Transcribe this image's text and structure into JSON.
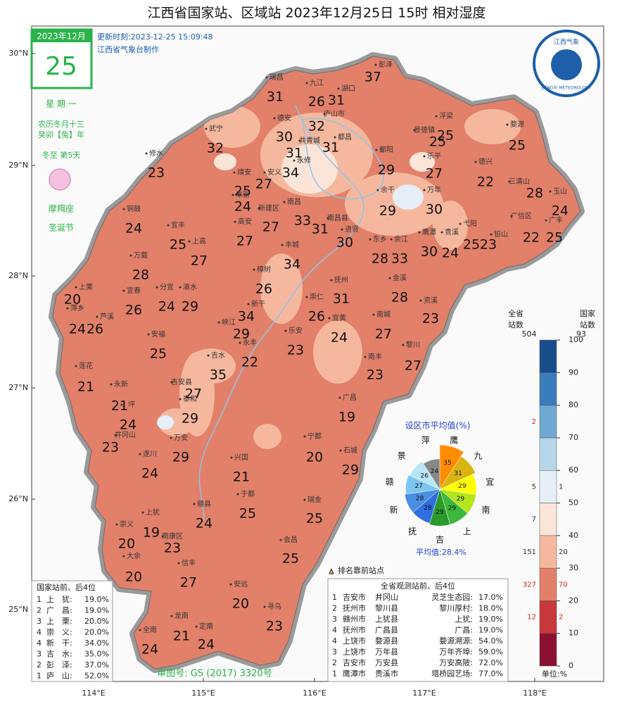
{
  "title": "江西省国家站、区域站    2023年12月25日  15时    相对湿度",
  "calendar": {
    "month": "2023年12月",
    "day": "25",
    "weekday": "星 期 一",
    "lunar_date": "农历冬月十三",
    "lunar_year": "癸卯【兔】年",
    "solar_term": "冬至  第5天",
    "zodiac": "摩羯座",
    "festival": "圣诞节"
  },
  "update_time": "更新时刻:2023-12-25 15:09:48",
  "producer": "江西省气象台制作",
  "logo": {
    "name": "江西气象",
    "english": "JIANGXI METEOROLOGY"
  },
  "lat_labels": [
    "30°N",
    "29°N",
    "28°N",
    "27°N",
    "26°N",
    "25°N"
  ],
  "lon_labels": [
    "114°E",
    "115°E",
    "116°E",
    "117°E",
    "118°E"
  ],
  "stations": [
    {
      "name": "彭泽",
      "value": 37
    },
    {
      "name": "瑞昌",
      "value": 31
    },
    {
      "name": "九江",
      "value": 26
    },
    {
      "name": "湖口",
      "value": 31
    },
    {
      "name": "庐山市",
      "value": 32
    },
    {
      "name": "德安",
      "value": 30
    },
    {
      "name": "共青城",
      "value": 31
    },
    {
      "name": "都昌",
      "value": 31
    },
    {
      "name": "武宁",
      "value": 32
    },
    {
      "name": "修水",
      "value": 23
    },
    {
      "name": "永修",
      "value": 34
    },
    {
      "name": "鄱阳",
      "value": 29
    },
    {
      "name": "浮梁",
      "value": 25
    },
    {
      "name": "景德镇",
      "value": 25
    },
    {
      "name": "乐平",
      "value": 27
    },
    {
      "name": "婺源",
      "value": 25
    },
    {
      "name": "德兴",
      "value": 22
    },
    {
      "name": "三清山",
      "value": 28
    },
    {
      "name": "玉山",
      "value": 24
    },
    {
      "name": "靖安",
      "value": 25
    },
    {
      "name": "安义",
      "value": 27
    },
    {
      "name": "奉新",
      "value": 24
    },
    {
      "name": "南昌",
      "value": 33
    },
    {
      "name": "新建区",
      "value": 27
    },
    {
      "name": "南昌县",
      "value": 31
    },
    {
      "name": "进贤",
      "value": 30
    },
    {
      "name": "余干",
      "value": 29
    },
    {
      "name": "万年",
      "value": 30
    },
    {
      "name": "鹰潭",
      "value": 30
    },
    {
      "name": "贵溪",
      "value": 24
    },
    {
      "name": "弋阳",
      "value": 25
    },
    {
      "name": "铅山",
      "value": 23
    },
    {
      "name": "广信区",
      "value": 22
    },
    {
      "name": "广丰",
      "value": 25
    },
    {
      "name": "东乡",
      "value": 28
    },
    {
      "name": "余江",
      "value": 33
    },
    {
      "name": "金溪",
      "value": 28
    },
    {
      "name": "资溪",
      "value": 23
    },
    {
      "name": "南城",
      "value": 27
    },
    {
      "name": "黎川",
      "value": 27
    },
    {
      "name": "南丰",
      "value": 23
    },
    {
      "name": "抚州",
      "value": 31
    },
    {
      "name": "崇仁",
      "value": 26
    },
    {
      "name": "宜黄",
      "value": 24
    },
    {
      "name": "乐安",
      "value": 23
    },
    {
      "name": "丰城",
      "value": 34
    },
    {
      "name": "高安",
      "value": 27
    },
    {
      "name": "上高",
      "value": 27
    },
    {
      "name": "宜丰",
      "value": 25
    },
    {
      "name": "铜鼓",
      "value": 24
    },
    {
      "name": "万载",
      "value": 28
    },
    {
      "name": "樟树",
      "value": 26
    },
    {
      "name": "新干",
      "value": 34
    },
    {
      "name": "峡江",
      "value": 29
    },
    {
      "name": "永丰",
      "value": 22
    },
    {
      "name": "分宜",
      "value": 24
    },
    {
      "name": "渝水",
      "value": 29
    },
    {
      "name": "宜春",
      "value": 26
    },
    {
      "name": "萍乡",
      "value": 24
    },
    {
      "name": "芦溪",
      "value": 26
    },
    {
      "name": "上栗",
      "value": 20
    },
    {
      "name": "莲花",
      "value": 21
    },
    {
      "name": "安福",
      "value": 25
    },
    {
      "name": "吉水",
      "value": 35
    },
    {
      "name": "吉安县",
      "value": 27
    },
    {
      "name": "泰和",
      "value": 29
    },
    {
      "name": "永新",
      "value": 21
    },
    {
      "name": "坪",
      "value": 24
    },
    {
      "name": "井冈山",
      "value": 23
    },
    {
      "name": "万安",
      "value": 29
    },
    {
      "name": "遂川",
      "value": 24
    },
    {
      "name": "兴国",
      "value": 21
    },
    {
      "name": "宁都",
      "value": 20
    },
    {
      "name": "广昌",
      "value": 19
    },
    {
      "name": "石城",
      "value": 29
    },
    {
      "name": "于都",
      "value": 25
    },
    {
      "name": "瑞金",
      "value": 25
    },
    {
      "name": "赣县",
      "value": 24
    },
    {
      "name": "上犹",
      "value": 19
    },
    {
      "name": "崇义",
      "value": 20
    },
    {
      "name": "南康区",
      "value": 23
    },
    {
      "name": "大余",
      "value": 20
    },
    {
      "name": "信丰",
      "value": 27
    },
    {
      "name": "会昌",
      "value": 25
    },
    {
      "name": "安远",
      "value": 20
    },
    {
      "name": "寻乌",
      "value": 23
    },
    {
      "name": "龙南",
      "value": 21
    },
    {
      "name": "全南",
      "value": 24
    },
    {
      "name": "定南",
      "value": 24
    }
  ],
  "colorbar": {
    "province_header": [
      "全省",
      "站数"
    ],
    "province_total": "504",
    "national_header": [
      "国家",
      "站数"
    ],
    "national_total": "93",
    "ticks": [
      0,
      10,
      20,
      30,
      40,
      50,
      60,
      70,
      80,
      90,
      100
    ],
    "unit": "单位:%",
    "bands": [
      {
        "color": "#8c1030",
        "province": null,
        "national": null,
        "count_color": "#333333"
      },
      {
        "color": "#c8373a",
        "province": "12",
        "national": "2",
        "count_color": "#cc2222"
      },
      {
        "color": "#e2806a",
        "province": "327",
        "national": "70",
        "count_color": "#cc2222"
      },
      {
        "color": "#f5b89e",
        "province": "151",
        "national": "20",
        "count_color": "#333333"
      },
      {
        "color": "#fbe5d9",
        "province": "7",
        "national": null,
        "count_color": "#333333"
      },
      {
        "color": "#e6eef7",
        "province": "5",
        "national": "1",
        "count_color": "#333333"
      },
      {
        "color": "#b6d6ea",
        "province": null,
        "national": null,
        "count_color": "#333333"
      },
      {
        "color": "#6fa9d3",
        "province": "2",
        "national": null,
        "count_color": "#cc2222"
      },
      {
        "color": "#3a7dbd",
        "province": null,
        "national": null,
        "count_color": "#333333"
      },
      {
        "color": "#184d8b",
        "province": null,
        "national": null,
        "count_color": "#333333"
      }
    ]
  },
  "pie": {
    "title": "设区市平均值(%)",
    "labels": [
      "鹰",
      "九",
      "宜",
      "南",
      "上",
      "吉",
      "抚",
      "新",
      "赣",
      "景",
      "萍"
    ],
    "values": [
      35,
      31,
      29,
      29,
      29,
      29,
      28,
      28,
      27,
      26,
      24
    ],
    "colors": [
      "#ff8c00",
      "#d9b310",
      "#ffff00",
      "#b5e61d",
      "#3cb83c",
      "#2a9a2a",
      "#2f6fe0",
      "#4a8ee0",
      "#7cc4f2",
      "#b8e6f5",
      "#888888"
    ],
    "average": "平均值:28.4%"
  },
  "legend_marker": "排名靠前站点",
  "national_rank": {
    "title": "国家站前、后4位",
    "rows": [
      [
        "1",
        "上　犹:",
        "19.0%"
      ],
      [
        "2",
        "广　昌:",
        "19.0%"
      ],
      [
        "3",
        "上　栗:",
        "20.0%"
      ],
      [
        "4",
        "崇　义:",
        "20.0%"
      ],
      [
        "4",
        "新　干:",
        "34.0%"
      ],
      [
        "3",
        "吉　水:",
        "35.0%"
      ],
      [
        "2",
        "彭　泽:",
        "37.0%"
      ],
      [
        "1",
        "庐　山:",
        "52.0%"
      ]
    ]
  },
  "province_rank": {
    "title": "全省观测站前、后4位",
    "rows": [
      [
        "1",
        "吉安市",
        "井冈山",
        "灵芝生态园:",
        "17.0%"
      ],
      [
        "2",
        "抚州市",
        "黎川县",
        "黎川厚村:",
        "18.0%"
      ],
      [
        "3",
        "赣州市",
        "上犹县",
        "上犹:",
        "19.0%"
      ],
      [
        "4",
        "抚州市",
        "广昌县",
        "广昌:",
        "19.0%"
      ],
      [
        "4",
        "上饶市",
        "婺源县",
        "婺源溯源:",
        "54.0%"
      ],
      [
        "3",
        "上饶市",
        "万年县",
        "万年齐埠:",
        "59.0%"
      ],
      [
        "2",
        "吉安市",
        "万安县",
        "万安高陂:",
        "72.0%"
      ],
      [
        "1",
        "鹰潭市",
        "贵溪市",
        "塔桥园艺场:",
        "77.0%"
      ]
    ]
  },
  "approval": "审图号: GS (2017) 3320号"
}
